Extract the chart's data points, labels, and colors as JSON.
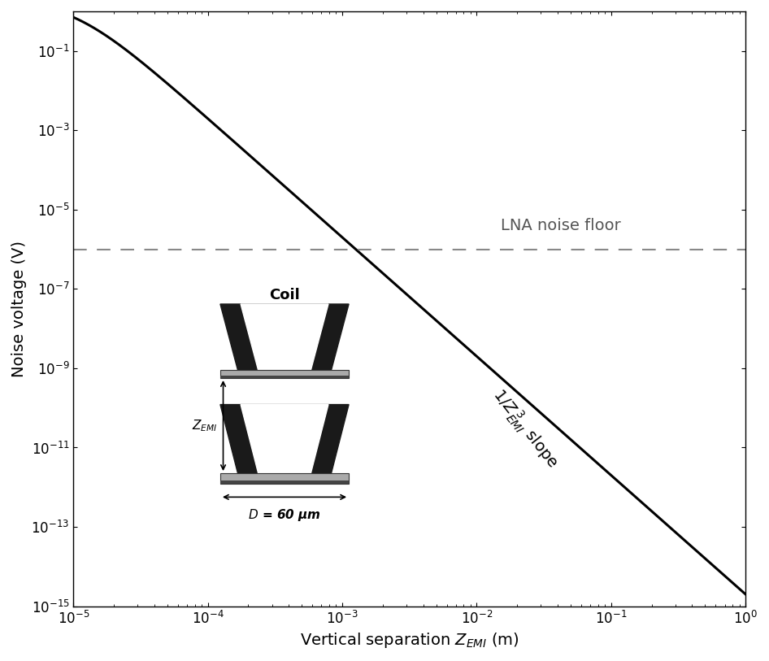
{
  "xlim": [
    1e-05,
    1
  ],
  "ylim": [
    1e-15,
    1
  ],
  "xlabel": "Vertical separation $Z_{EMI}$ (m)",
  "ylabel": "Noise voltage (V)",
  "lna_noise_floor": 1e-06,
  "lna_label": "LNA noise floor",
  "slope_label": "$1/Z_{EMI}^{\\,3}$ slope",
  "coil_label": "Coil",
  "D_label": "$D$ = 60 μm",
  "curve_color": "#000000",
  "lna_line_color": "#888888",
  "background_color": "#ffffff",
  "line_width": 2.2,
  "title_fontsize": 14,
  "label_fontsize": 14,
  "tick_fontsize": 12
}
